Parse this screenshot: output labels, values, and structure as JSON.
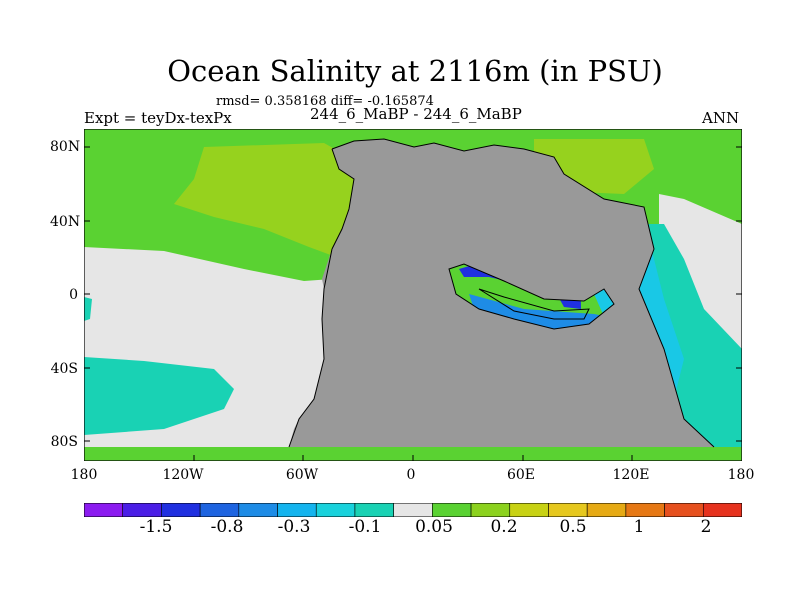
{
  "title": "Ocean Salinity at 2116m (in PSU)",
  "subtitle": "rmsd= 0.358168 diff= -0.165874",
  "left_label": "Expt = teyDx-texPx",
  "center_label": "244_6_MaBP - 244_6_MaBP",
  "right_label": "ANN",
  "y_ticks": [
    "80N",
    "40N",
    "0",
    "40S",
    "80S"
  ],
  "x_ticks": [
    "180",
    "120W",
    "60W",
    "0",
    "60E",
    "120E",
    "180"
  ],
  "colorbar": {
    "colors": [
      "#8c1cf0",
      "#4b1ee6",
      "#2030e0",
      "#1e64e0",
      "#1e8ce6",
      "#14b4ee",
      "#19d2dc",
      "#19d2b4",
      "#e6e6e6",
      "#5ad232",
      "#8cd21e",
      "#c8d214",
      "#e6c81e",
      "#e6aa14",
      "#e67814",
      "#e6501e",
      "#e6321e"
    ],
    "labels": [
      "-1.5",
      "-0.8",
      "-0.3",
      "-0.1",
      "0.05",
      "0.2",
      "0.5",
      "1",
      "2"
    ]
  },
  "colors": {
    "land": "#999999",
    "green": "#5ad232",
    "lightgreen": "#96d21e",
    "gray": "#e6e6e6",
    "teal": "#19d2b4",
    "cyan": "#19c8e6",
    "blue": "#1e8ce6",
    "darkblue": "#2030e0"
  }
}
